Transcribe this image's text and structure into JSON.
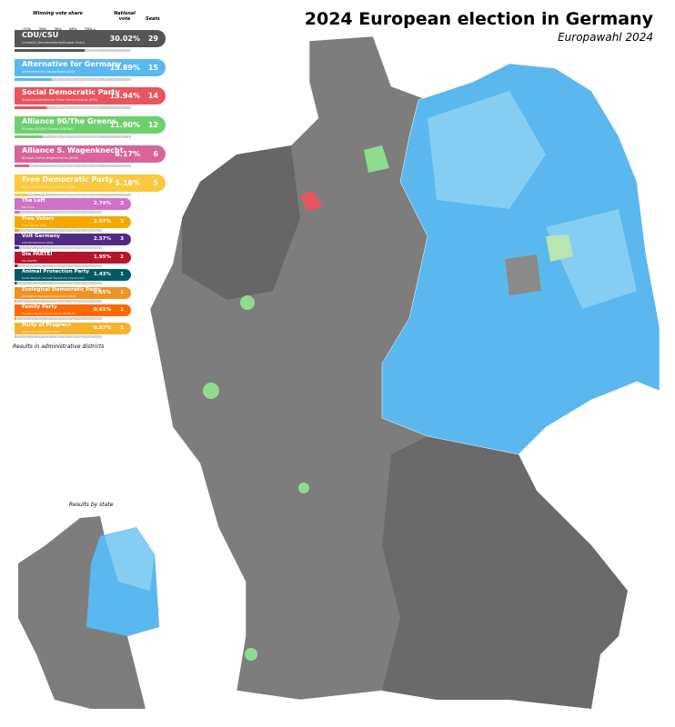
{
  "title": "2024 European election in Germany",
  "subtitle": "Europawahl 2024",
  "legend": {
    "header_share": "Winning vote share",
    "ticks": [
      "-10%",
      "20%",
      "30%",
      "40%",
      "50%+"
    ],
    "header_national": "National vote",
    "header_seats": "Seats",
    "parties": [
      {
        "name": "CDU/CSU",
        "sub": "Christlich Demokratische/Soziale Union",
        "pct": "30.02%",
        "seats": "29",
        "color": "#555555",
        "share": 30.02
      },
      {
        "name": "Alternative for Germany",
        "sub": "Alternative für Deutschland (AfD)",
        "pct": "15.89%",
        "seats": "15",
        "color": "#5ab8ee",
        "share": 15.89
      },
      {
        "name": "Social Democratic Party",
        "sub": "Sozialdemokratische Partei Deutschlands (SPD)",
        "pct": "13.94%",
        "seats": "14",
        "color": "#e8555f",
        "share": 13.94
      },
      {
        "name": "Alliance 90/The Greens",
        "sub": "Bündnis 90/Die Grünen (GRÜNE)",
        "pct": "11.90%",
        "seats": "12",
        "color": "#6fcf6f",
        "share": 11.9
      },
      {
        "name": "Alliance S. Wagenknecht",
        "sub": "Bündnis Sahra Wagenknecht (BSW)",
        "pct": "6.17%",
        "seats": "6",
        "color": "#d9639a",
        "share": 6.17
      },
      {
        "name": "Free Democratic Party",
        "sub": "Freie Demokratische Partei (FDP)",
        "pct": "5.18%",
        "seats": "5",
        "color": "#fbc93d",
        "share": 5.18
      },
      {
        "name": "The Left",
        "sub": "Die Linke",
        "pct": "2.74%",
        "seats": "3",
        "color": "#cf72c6",
        "share": 2.74
      },
      {
        "name": "Free Voters",
        "sub": "Freie Wähler (FW)",
        "pct": "2.67%",
        "seats": "3",
        "color": "#f5a800",
        "share": 2.67
      },
      {
        "name": "Volt Germany",
        "sub": "Volt Deutschland (Volt)",
        "pct": "2.57%",
        "seats": "3",
        "color": "#512a83",
        "share": 2.57
      },
      {
        "name": "Die PARTEI",
        "sub": "Die PARTEI",
        "pct": "1.95%",
        "seats": "2",
        "color": "#b5152b",
        "share": 1.95
      },
      {
        "name": "Animal Protection Party",
        "sub": "Partei Mensch Umwelt Tierschutz (Tierschutz)",
        "pct": "1.43%",
        "seats": "1",
        "color": "#005a63",
        "share": 1.43
      },
      {
        "name": "Ecological Democratic Party",
        "sub": "Ökologisch-Demokratische Partei (ÖDP)",
        "pct": "0.65%",
        "seats": "1",
        "color": "#ee9322",
        "share": 0.65
      },
      {
        "name": "Family Party",
        "sub": "Familien-Partei Deutschlands (FAMILIE)",
        "pct": "0.61%",
        "seats": "1",
        "color": "#ff6a00",
        "share": 0.61
      },
      {
        "name": "Party of Progress",
        "sub": "Partei des Fortschritts (PdF)",
        "pct": "0.57%",
        "seats": "1",
        "color": "#f7b32b",
        "share": 0.57
      }
    ],
    "note": "Results in administrative districts"
  },
  "inset_label": "Results by state",
  "colors": {
    "cdu": "#7a7a7a",
    "afd": "#5ab8ee",
    "afd_light": "#85cdf2",
    "spd": "#e8555f",
    "greens": "#8fdc8f"
  }
}
